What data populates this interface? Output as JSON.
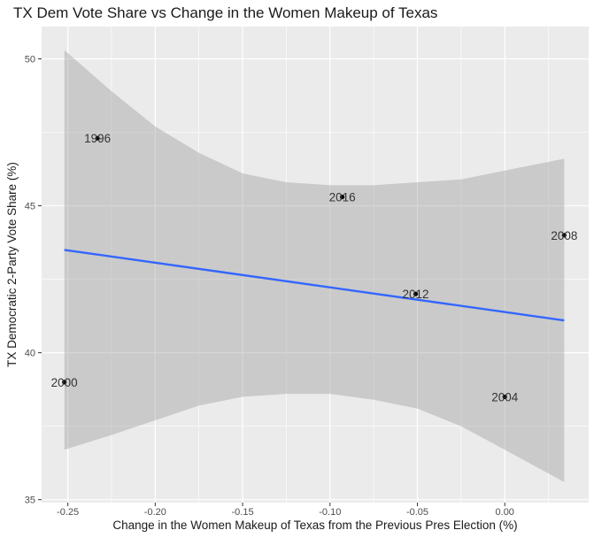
{
  "chart_data": {
    "type": "scatter",
    "title": "TX Dem Vote Share vs Change in the Women Makeup of Texas",
    "xlabel": "Change in the Women Makeup of Texas from the Previous Pres Election (%)",
    "ylabel": "TX Democratic 2-Party Vote Share (%)",
    "xlim": [
      -0.265,
      0.048
    ],
    "ylim": [
      34.9,
      51.1
    ],
    "x_ticks": [
      -0.25,
      -0.2,
      -0.15,
      -0.1,
      -0.05,
      0.0
    ],
    "x_tick_labels": [
      "-0.25",
      "-0.20",
      "-0.15",
      "-0.10",
      "-0.05",
      "0.00"
    ],
    "y_ticks": [
      35,
      40,
      45,
      50
    ],
    "y_tick_labels": [
      "35",
      "40",
      "45",
      "50"
    ],
    "grid": true,
    "points": [
      {
        "label": "1996",
        "x": -0.233,
        "y": 47.3
      },
      {
        "label": "2000",
        "x": -0.252,
        "y": 39.0
      },
      {
        "label": "2004",
        "x": 0.0,
        "y": 38.5
      },
      {
        "label": "2008",
        "x": 0.034,
        "y": 44.0
      },
      {
        "label": "2012",
        "x": -0.051,
        "y": 42.0
      },
      {
        "label": "2016",
        "x": -0.093,
        "y": 45.3
      }
    ],
    "fit_line": {
      "x": [
        -0.252,
        0.034
      ],
      "y": [
        43.5,
        41.1
      ],
      "color": "#3366FF"
    },
    "confidence_band": {
      "x": [
        -0.252,
        -0.225,
        -0.2,
        -0.175,
        -0.15,
        -0.125,
        -0.1,
        -0.075,
        -0.05,
        -0.025,
        0.0,
        0.034
      ],
      "upper": [
        50.3,
        48.9,
        47.7,
        46.8,
        46.1,
        45.8,
        45.7,
        45.7,
        45.8,
        45.9,
        46.2,
        46.6
      ],
      "lower": [
        36.7,
        37.2,
        37.7,
        38.2,
        38.5,
        38.6,
        38.6,
        38.4,
        38.1,
        37.5,
        36.7,
        35.6
      ],
      "color": "#999999"
    },
    "colors": {
      "panel_background": "#EBEBEB",
      "grid": "#FFFFFF",
      "point": "#000000",
      "band": "#BFBFBF"
    }
  }
}
